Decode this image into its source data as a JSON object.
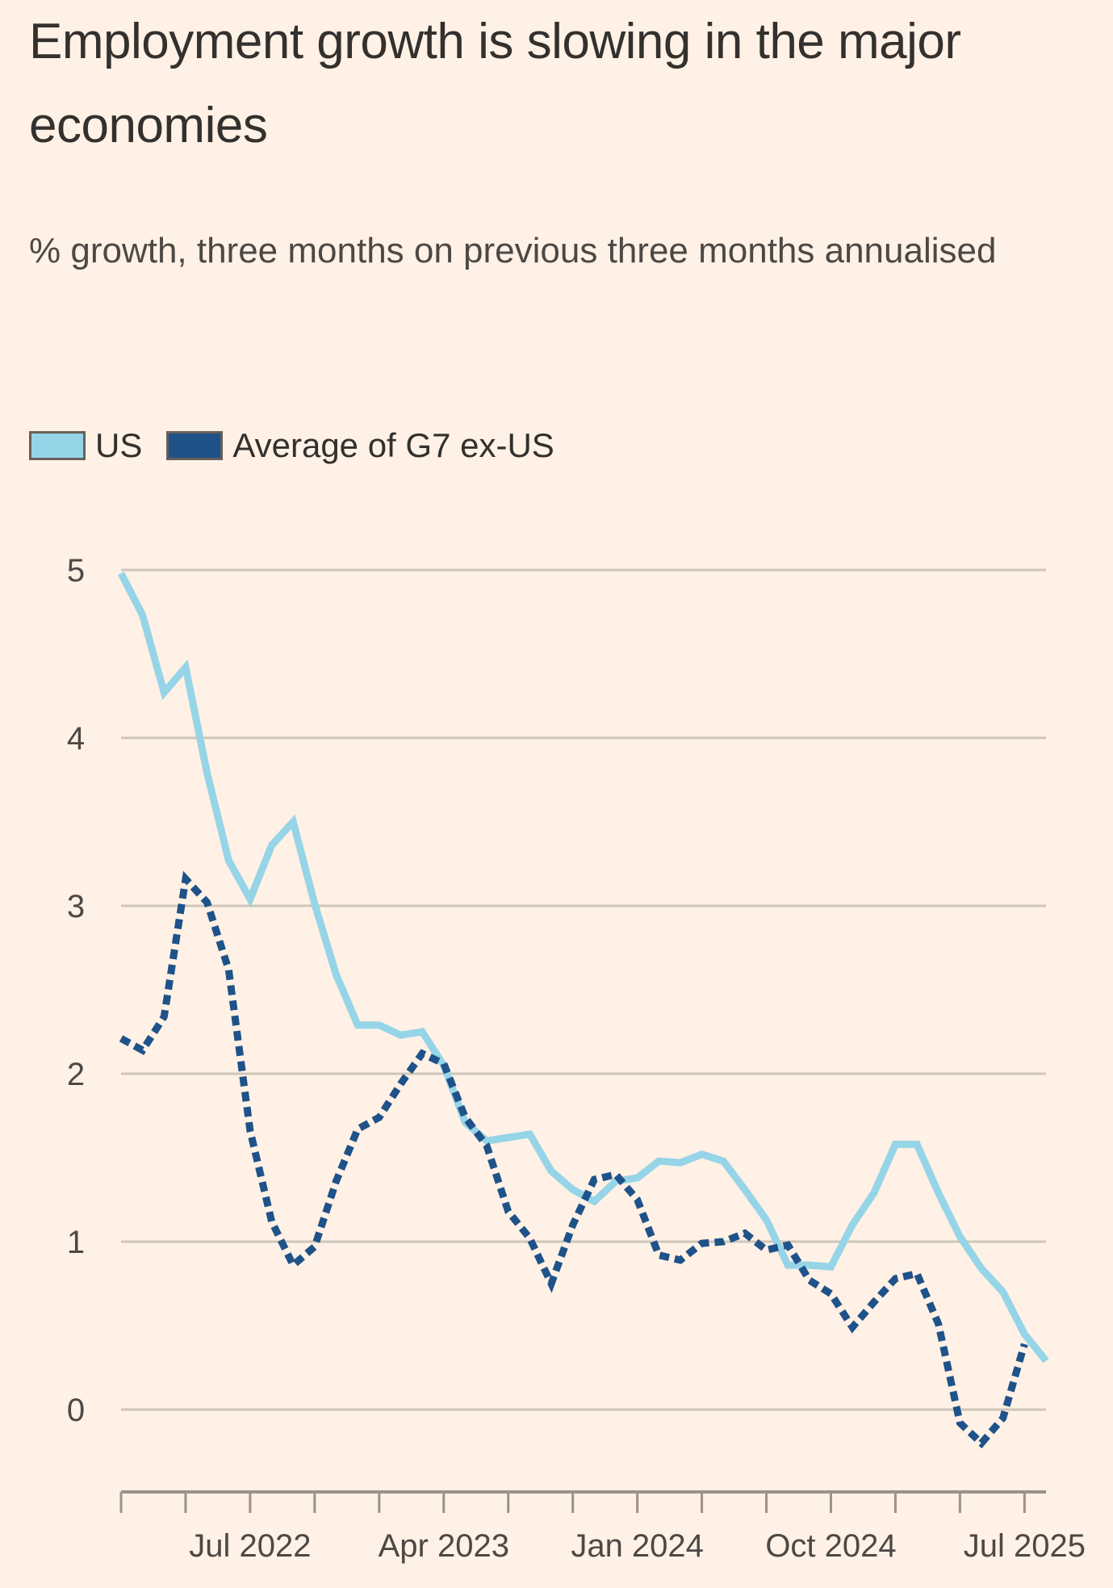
{
  "title": "Employment growth is slowing in the major economies",
  "subtitle": "% growth, three months on previous three months annualised",
  "colors": {
    "background": "#fff1e5",
    "us": "#96d4e8",
    "g7": "#1f5289",
    "grid": "#cec6b9",
    "axis": "#9b928b"
  },
  "legend": [
    {
      "label": "US",
      "color": "#96d4e8"
    },
    {
      "label": "Average of G7 ex-US",
      "color": "#1f5289"
    }
  ],
  "chart_data": {
    "type": "line",
    "title": "Employment growth is slowing in the major economies",
    "subtitle": "% growth, three months on previous three months annualised",
    "xlabel": "",
    "ylabel": "",
    "ylim": [
      -0.5,
      5
    ],
    "yticks": [
      0,
      1,
      2,
      3,
      4,
      5
    ],
    "grid": true,
    "legend_position": "top-left",
    "x_start": "Jan 2022",
    "x_end": "Aug 2025",
    "x_frequency": "monthly",
    "xtick_labels": [
      {
        "label": "Jul 2022",
        "month_index": 6
      },
      {
        "label": "Apr 2023",
        "month_index": 15
      },
      {
        "label": "Jan 2024",
        "month_index": 24
      },
      {
        "label": "Oct 2024",
        "month_index": 33
      },
      {
        "label": "Jul 2025",
        "month_index": 42
      }
    ],
    "x_minor_ticks_every_months": 3,
    "x": [
      "Jan 2022",
      "Feb 2022",
      "Mar 2022",
      "Apr 2022",
      "May 2022",
      "Jun 2022",
      "Jul 2022",
      "Aug 2022",
      "Sep 2022",
      "Oct 2022",
      "Nov 2022",
      "Dec 2022",
      "Jan 2023",
      "Feb 2023",
      "Mar 2023",
      "Apr 2023",
      "May 2023",
      "Jun 2023",
      "Jul 2023",
      "Aug 2023",
      "Sep 2023",
      "Oct 2023",
      "Nov 2023",
      "Dec 2023",
      "Jan 2024",
      "Feb 2024",
      "Mar 2024",
      "Apr 2024",
      "May 2024",
      "Jun 2024",
      "Jul 2024",
      "Aug 2024",
      "Sep 2024",
      "Oct 2024",
      "Nov 2024",
      "Dec 2024",
      "Jan 2025",
      "Feb 2025",
      "Mar 2025",
      "Apr 2025",
      "May 2025",
      "Jun 2025",
      "Jul 2025",
      "Aug 2025"
    ],
    "series": [
      {
        "name": "US",
        "style": "solid",
        "values": [
          4.98,
          4.73,
          4.27,
          4.42,
          3.79,
          3.27,
          3.04,
          3.36,
          3.5,
          3.01,
          2.59,
          2.29,
          2.29,
          2.23,
          2.25,
          2.05,
          1.71,
          1.6,
          1.62,
          1.64,
          1.42,
          1.31,
          1.24,
          1.36,
          1.38,
          1.48,
          1.47,
          1.52,
          1.48,
          1.31,
          1.13,
          0.86,
          0.86,
          0.85,
          1.1,
          1.29,
          1.58,
          1.58,
          1.29,
          1.03,
          0.84,
          0.7,
          0.45,
          0.29
        ]
      },
      {
        "name": "Average of G7 ex-US",
        "style": "dotted",
        "values": [
          2.21,
          2.14,
          2.34,
          3.16,
          3.02,
          2.62,
          1.66,
          1.12,
          0.86,
          0.97,
          1.36,
          1.67,
          1.74,
          1.94,
          2.12,
          2.06,
          1.74,
          1.57,
          1.18,
          1.02,
          0.75,
          1.1,
          1.37,
          1.4,
          1.25,
          0.92,
          0.89,
          0.99,
          1.0,
          1.05,
          0.95,
          0.98,
          0.77,
          0.69,
          0.49,
          0.64,
          0.78,
          0.81,
          0.51,
          -0.08,
          -0.2,
          -0.05,
          0.39,
          null
        ]
      }
    ]
  }
}
